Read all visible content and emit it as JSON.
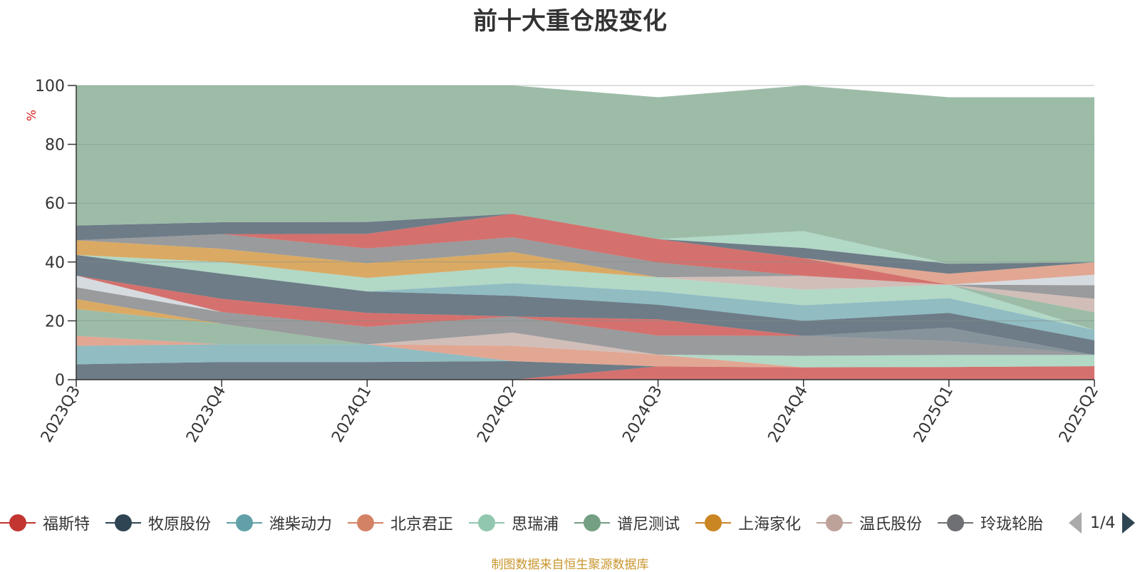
{
  "chart_data": {
    "type": "area",
    "stacked": true,
    "title": "前十大重仓股变化",
    "ylabel": "%",
    "ylim": [
      0,
      100
    ],
    "yticks": [
      0,
      20,
      40,
      60,
      80,
      100
    ],
    "categories": [
      "2023Q3",
      "2023Q4",
      "2024Q1",
      "2024Q2",
      "2024Q3",
      "2024Q4",
      "2025Q1",
      "2025Q2"
    ],
    "grid": true,
    "legend_position": "bottom",
    "legend_page": "1/4",
    "series": [
      {
        "name": "福斯特",
        "color": "#c23531",
        "values": [
          0,
          0,
          0,
          0,
          4.5,
          4.2,
          4.3,
          4.6
        ]
      },
      {
        "name": "牧原股份",
        "color": "#2f4554",
        "values": [
          5.2,
          6.0,
          6.0,
          6.3,
          0,
          0,
          0,
          0
        ]
      },
      {
        "name": "潍柴动力",
        "color": "#61a0a8",
        "values": [
          6.3,
          6.0,
          6.0,
          0,
          0,
          0,
          0,
          0
        ]
      },
      {
        "name": "北京君正",
        "color": "#d48265",
        "values": [
          3.4,
          0,
          0,
          5.2,
          4.0,
          0,
          0,
          0
        ]
      },
      {
        "name": "思瑞浦",
        "color": "#91c7ae",
        "values": [
          0,
          0,
          0,
          0,
          0,
          3.9,
          4.1,
          3.8
        ]
      },
      {
        "name": "谱尼测试",
        "color": "#749f83",
        "values": [
          9.1,
          7.0,
          0,
          0,
          0,
          0,
          0,
          0
        ]
      },
      {
        "name": "上海家化",
        "color": "#ca8622",
        "values": [
          3.4,
          0,
          0,
          0,
          0,
          0,
          0,
          0
        ]
      },
      {
        "name": "温氏股份",
        "color": "#bda29a",
        "values": [
          0,
          0,
          0,
          4.5,
          0,
          0,
          0,
          0
        ]
      },
      {
        "name": "玲珑轮胎",
        "color": "#6e7074",
        "values": [
          4.0,
          4.0,
          6.0,
          5.5,
          6.5,
          6.8,
          4.7,
          0
        ]
      },
      {
        "name": "",
        "color": "#546570",
        "values": [
          0,
          0,
          0,
          0,
          0,
          0,
          4.6,
          0
        ]
      },
      {
        "name": "",
        "color": "#c4ccd3",
        "values": [
          4.0,
          0,
          0,
          0,
          0,
          0,
          0,
          0
        ]
      },
      {
        "name": "",
        "color": "#c23531",
        "values": [
          0,
          4.5,
          4.7,
          0,
          5.5,
          0,
          0,
          0
        ]
      },
      {
        "name": "",
        "color": "#2f4554",
        "values": [
          7.0,
          8.5,
          7.3,
          7.0,
          5.0,
          5.1,
          5.0,
          5.0
        ]
      },
      {
        "name": "",
        "color": "#61a0a8",
        "values": [
          0,
          0,
          0,
          4.3,
          4.5,
          5.3,
          5.0,
          3.5
        ]
      },
      {
        "name": "",
        "color": "#91c7ae",
        "values": [
          0,
          4.0,
          4.6,
          5.6,
          4.8,
          5.3,
          4.6,
          0
        ]
      },
      {
        "name": "",
        "color": "#749f83",
        "values": [
          0,
          0,
          0,
          0,
          0,
          0,
          0,
          6.0
        ]
      },
      {
        "name": "",
        "color": "#bda29a",
        "values": [
          0,
          0,
          0,
          0,
          0,
          4.7,
          0,
          4.6
        ]
      },
      {
        "name": "",
        "color": "#ca8622",
        "values": [
          5.0,
          4.5,
          5.0,
          5.0,
          0,
          0,
          0,
          0
        ]
      },
      {
        "name": "",
        "color": "#6e7074",
        "values": [
          0,
          5.0,
          5.0,
          5.0,
          5.0,
          0,
          0,
          4.6
        ]
      },
      {
        "name": "",
        "color": "#c4ccd3",
        "values": [
          0,
          0,
          0,
          0,
          0,
          0,
          0,
          3.6
        ]
      },
      {
        "name": "",
        "color": "#c23531",
        "values": [
          0,
          0,
          5.0,
          8.0,
          8.0,
          6.0,
          0,
          0
        ]
      },
      {
        "name": "",
        "color": "#d48265",
        "values": [
          0,
          0,
          0,
          0,
          0,
          0,
          3.7,
          4.2
        ]
      },
      {
        "name": "",
        "color": "#2f4554",
        "values": [
          5.0,
          4.0,
          4.0,
          0,
          0,
          3.5,
          3.4,
          0
        ]
      },
      {
        "name": "",
        "color": "#91c7ae",
        "values": [
          0,
          0,
          0,
          0,
          0,
          5.7,
          0,
          0
        ]
      },
      {
        "name": "",
        "color": "#749f83",
        "values": [
          47.6,
          46.5,
          46.4,
          43.6,
          48.2,
          49.5,
          56.6,
          56.1
        ]
      }
    ]
  },
  "legend": {
    "items": [
      {
        "label": "福斯特",
        "color": "#c23531"
      },
      {
        "label": "牧原股份",
        "color": "#2f4554"
      },
      {
        "label": "潍柴动力",
        "color": "#61a0a8"
      },
      {
        "label": "北京君正",
        "color": "#d48265"
      },
      {
        "label": "思瑞浦",
        "color": "#91c7ae"
      },
      {
        "label": "谱尼测试",
        "color": "#749f83"
      },
      {
        "label": "上海家化",
        "color": "#ca8622"
      },
      {
        "label": "温氏股份",
        "color": "#bda29a"
      },
      {
        "label": "玲珑轮胎",
        "color": "#6e7074"
      }
    ],
    "page": "1/4"
  },
  "source_note": "制图数据来自恒生聚源数据库"
}
